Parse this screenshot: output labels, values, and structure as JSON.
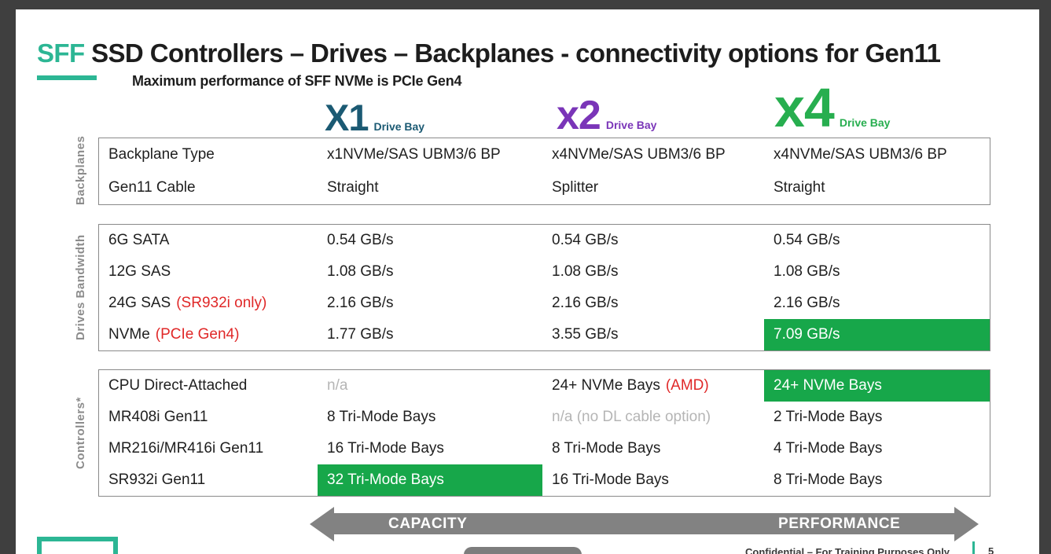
{
  "title": {
    "highlight": "SFF",
    "rest": " SSD Controllers – Drives – Backplanes - connectivity options for Gen11",
    "subtitle": "Maximum performance of SFF NVMe is PCIe Gen4"
  },
  "columns": [
    {
      "big": "X1",
      "small": "Drive Bay"
    },
    {
      "big": "x2",
      "small": "Drive Bay"
    },
    {
      "big": "x4",
      "small": "Drive Bay"
    }
  ],
  "sections": [
    {
      "side_label": "Backplanes",
      "rows": [
        {
          "label": "Backplane Type",
          "cells": [
            {
              "text": "x1NVMe/SAS UBM3/6 BP"
            },
            {
              "text": "x4NVMe/SAS UBM3/6 BP"
            },
            {
              "text": "x4NVMe/SAS UBM3/6 BP"
            }
          ]
        },
        {
          "label": "Gen11 Cable",
          "cells": [
            {
              "text": "Straight"
            },
            {
              "text": "Splitter"
            },
            {
              "text": "Straight"
            }
          ]
        }
      ]
    },
    {
      "side_label": "Drives Bandwidth",
      "rows": [
        {
          "label": "6G SATA",
          "label_note": "",
          "cells": [
            {
              "text": "0.54 GB/s"
            },
            {
              "text": "0.54 GB/s"
            },
            {
              "text": "0.54 GB/s"
            }
          ]
        },
        {
          "label": "12G SAS",
          "label_note": "",
          "cells": [
            {
              "text": "1.08 GB/s"
            },
            {
              "text": "1.08 GB/s"
            },
            {
              "text": "1.08 GB/s"
            }
          ]
        },
        {
          "label": "24G SAS",
          "label_note": "(SR932i only)",
          "cells": [
            {
              "text": "2.16 GB/s"
            },
            {
              "text": "2.16 GB/s"
            },
            {
              "text": "2.16 GB/s"
            }
          ]
        },
        {
          "label": "NVMe",
          "label_note": "(PCIe Gen4)",
          "cells": [
            {
              "text": "1.77 GB/s"
            },
            {
              "text": "3.55 GB/s"
            },
            {
              "text": "7.09 GB/s"
            }
          ]
        }
      ]
    },
    {
      "side_label": "Controllers*",
      "rows": [
        {
          "label": "CPU Direct-Attached",
          "cells": [
            {
              "text": "n/a"
            },
            {
              "text": "24+ NVMe Bays",
              "note": "(AMD)"
            },
            {
              "text": "24+ NVMe Bays"
            }
          ]
        },
        {
          "label": "MR408i Gen11",
          "cells": [
            {
              "text": "8 Tri-Mode Bays"
            },
            {
              "text": "n/a (no DL cable option)"
            },
            {
              "text": "2 Tri-Mode Bays"
            }
          ]
        },
        {
          "label": "MR216i/MR416i Gen11",
          "cells": [
            {
              "text": "16 Tri-Mode Bays"
            },
            {
              "text": "8 Tri-Mode Bays"
            },
            {
              "text": "4 Tri-Mode Bays"
            }
          ]
        },
        {
          "label": "SR932i Gen11",
          "cells": [
            {
              "text": "32 Tri-Mode Bays"
            },
            {
              "text": "16 Tri-Mode Bays"
            },
            {
              "text": "8 Tri-Mode Bays"
            }
          ]
        }
      ]
    }
  ],
  "arrow": {
    "left_label": "CAPACITY",
    "right_label": "PERFORMANCE"
  },
  "footer": {
    "confidential": "Confidential – For Training Purposes Only",
    "page": "5"
  },
  "colors": {
    "hpe_green": "#2CB694",
    "x1_teal": "#1B5A73",
    "x2_purple": "#7A35B8",
    "x4_green": "#27AE4F",
    "highlight_green": "#17A74A",
    "red": "#E02828",
    "muted_gray": "#B5B5B5",
    "arrow_gray": "#828282",
    "side_label_gray": "#8C8C8C"
  }
}
